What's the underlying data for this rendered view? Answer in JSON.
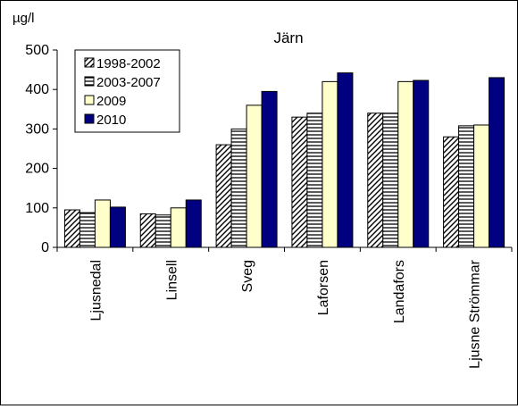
{
  "chart_data": {
    "type": "bar",
    "title": "Järn",
    "ylabel": "µg/l",
    "xlabel": "",
    "ylim": [
      0,
      500
    ],
    "yticks": [
      0,
      100,
      200,
      300,
      400,
      500
    ],
    "grid": false,
    "legend_position": "top-left",
    "categories": [
      "Ljusnedal",
      "Linsell",
      "Sveg",
      "Laforsen",
      "Landafors",
      "Ljusne Strömmar"
    ],
    "series": [
      {
        "name": "1998-2002",
        "pattern": "diagonal-hatch",
        "color": "#ffffff",
        "values": [
          95,
          85,
          260,
          330,
          340,
          280
        ]
      },
      {
        "name": "2003-2007",
        "pattern": "horizontal-lines",
        "color": "#ffffff",
        "values": [
          88,
          82,
          300,
          340,
          340,
          308
        ]
      },
      {
        "name": "2009",
        "pattern": "solid",
        "color": "#ffffcc",
        "values": [
          120,
          100,
          360,
          420,
          420,
          310
        ]
      },
      {
        "name": "2010",
        "pattern": "solid",
        "color": "#000080",
        "values": [
          102,
          120,
          395,
          442,
          423,
          430
        ]
      }
    ]
  }
}
